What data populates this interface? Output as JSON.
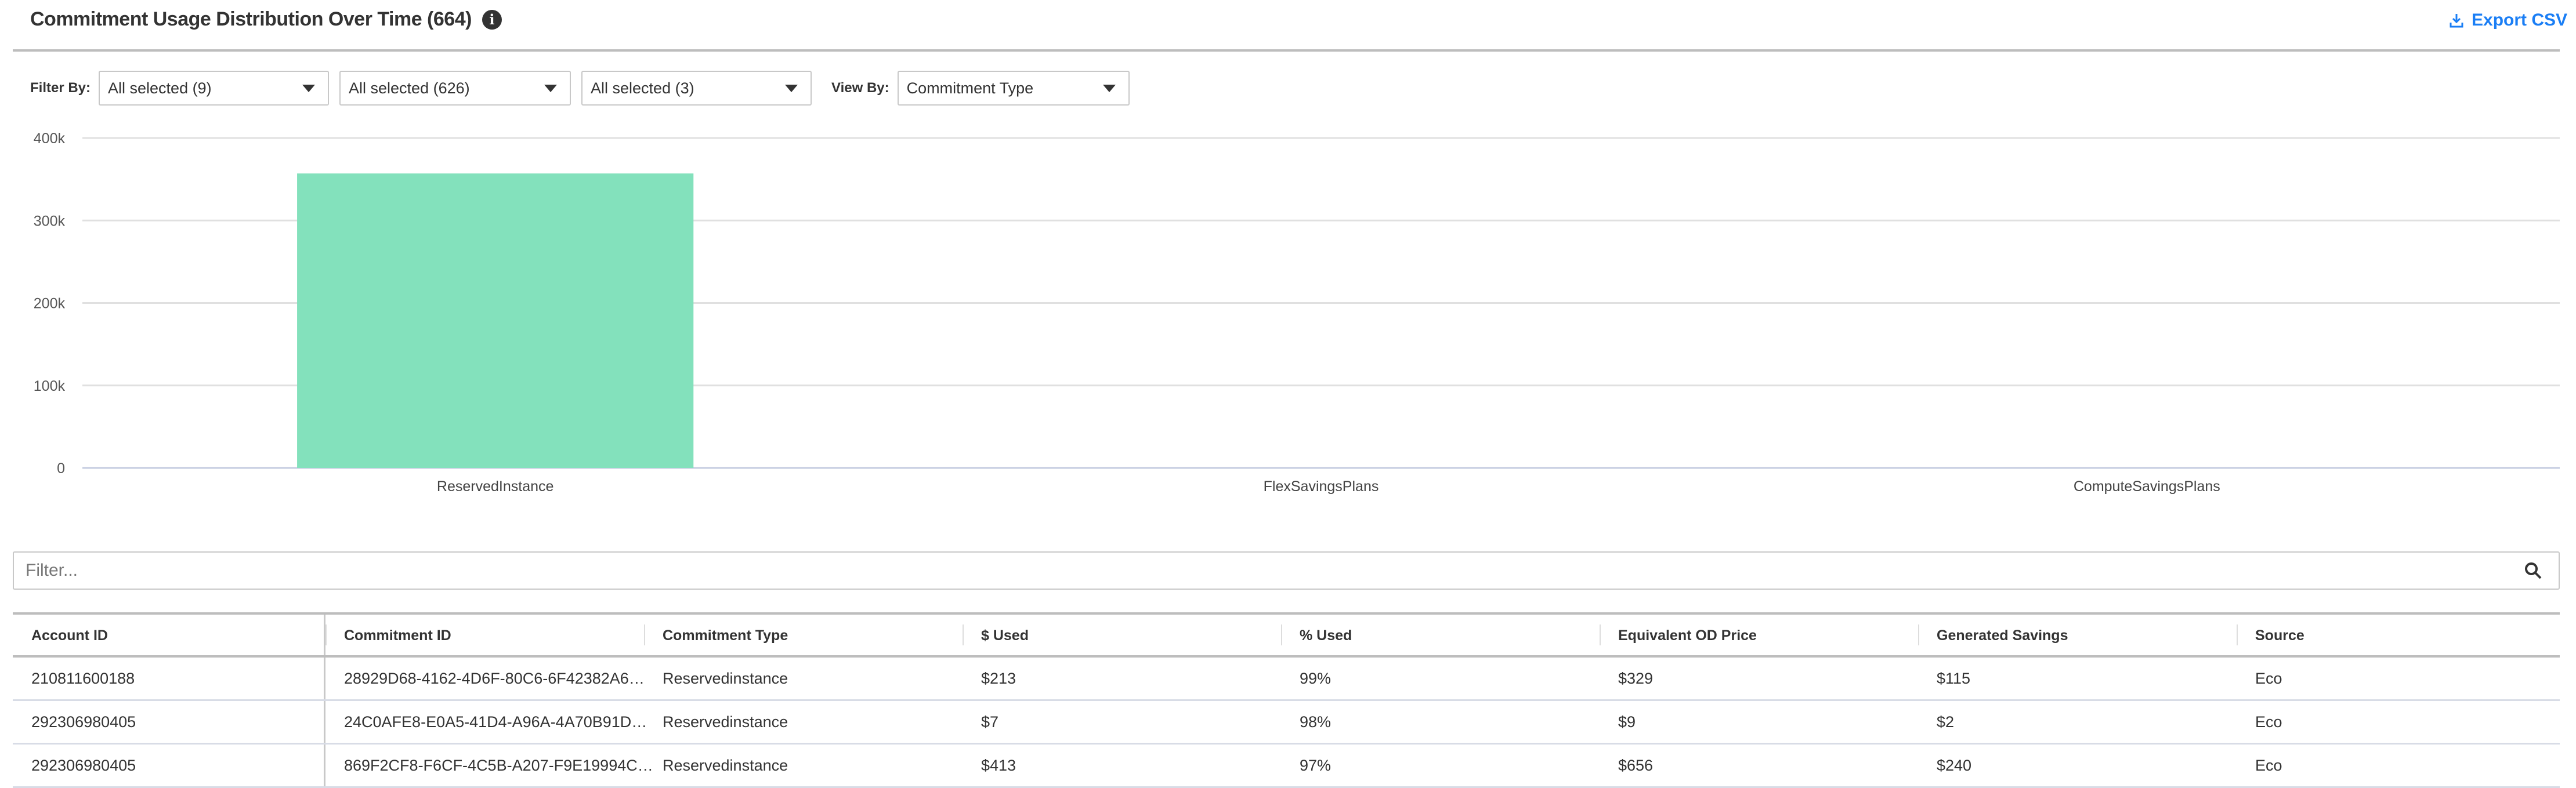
{
  "header": {
    "title": "Commitment Usage Distribution Over Time (664)",
    "info_icon": "info-circle-icon",
    "export_label": "Export CSV",
    "export_icon": "download-icon",
    "accent_color": "#1a7ef5"
  },
  "filters": {
    "filter_by_label": "Filter By:",
    "dropdowns": [
      {
        "value": "All selected (9)"
      },
      {
        "value": "All selected (626)"
      },
      {
        "value": "All selected (3)"
      }
    ],
    "view_by_label": "View By:",
    "view_by_value": "Commitment Type"
  },
  "chart_data": {
    "type": "bar",
    "categories": [
      "ReservedInstance",
      "FlexSavingsPlans",
      "ComputeSavingsPlans"
    ],
    "values": [
      357000,
      0,
      0
    ],
    "ylim": [
      0,
      400000
    ],
    "yticks": [
      0,
      100000,
      200000,
      300000,
      400000
    ],
    "ytick_labels": [
      "0",
      "100k",
      "200k",
      "300k",
      "400k"
    ],
    "grid": true,
    "bar_color": "#83e1bc"
  },
  "search": {
    "placeholder": "Filter...",
    "icon": "search-icon"
  },
  "table": {
    "columns": [
      "Account ID",
      "Commitment ID",
      "Commitment Type",
      "$ Used",
      "% Used",
      "Equivalent OD Price",
      "Generated Savings",
      "Source"
    ],
    "rows": [
      [
        "210811600188",
        "28929D68-4162-4D6F-80C6-6F42382A6…",
        "Reservedinstance",
        "$213",
        "99%",
        "$329",
        "$115",
        "Eco"
      ],
      [
        "292306980405",
        "24C0AFE8-E0A5-41D4-A96A-4A70B91D…",
        "Reservedinstance",
        "$7",
        "98%",
        "$9",
        "$2",
        "Eco"
      ],
      [
        "292306980405",
        "869F2CF8-F6CF-4C5B-A207-F9E19994C…",
        "Reservedinstance",
        "$413",
        "97%",
        "$656",
        "$240",
        "Eco"
      ]
    ]
  }
}
